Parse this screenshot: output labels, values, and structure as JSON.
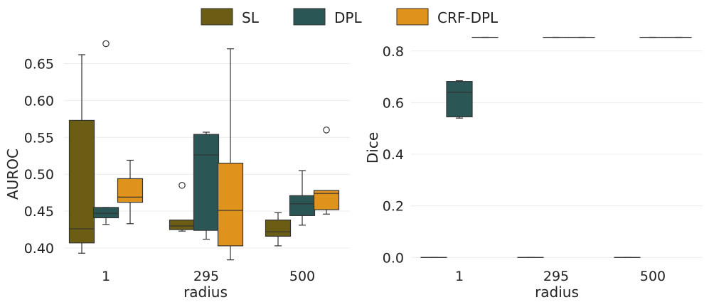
{
  "legend": [
    {
      "name": "SL",
      "color": "#6b5e14"
    },
    {
      "name": "DPL",
      "color": "#2b5656"
    },
    {
      "name": "CRF-DPL",
      "color": "#e0931c"
    }
  ],
  "chart_data": [
    {
      "type": "box",
      "xlabel": "radius",
      "ylabel": "AUROC",
      "categories": [
        "1",
        "295",
        "500"
      ],
      "ylim": [
        0.375,
        0.688
      ],
      "yticks": [
        0.4,
        0.45,
        0.5,
        0.55,
        0.6,
        0.65
      ],
      "ytick_labels": [
        "0.40",
        "0.45",
        "0.50",
        "0.55",
        "0.60",
        "0.65"
      ],
      "series": [
        {
          "name": "SL",
          "boxes": [
            {
              "category": "1",
              "whislo": 0.393,
              "q1": 0.407,
              "med": 0.426,
              "q3": 0.573,
              "whishi": 0.662,
              "fliers": []
            },
            {
              "category": "295",
              "whislo": 0.423,
              "q1": 0.425,
              "med": 0.43,
              "q3": 0.438,
              "whishi": 0.438,
              "fliers": [
                0.485
              ]
            },
            {
              "category": "500",
              "whislo": 0.403,
              "q1": 0.416,
              "med": 0.422,
              "q3": 0.438,
              "whishi": 0.448,
              "fliers": []
            }
          ]
        },
        {
          "name": "DPL",
          "boxes": [
            {
              "category": "1",
              "whislo": 0.432,
              "q1": 0.441,
              "med": 0.447,
              "q3": 0.455,
              "whishi": 0.455,
              "fliers": [
                0.677
              ]
            },
            {
              "category": "295",
              "whislo": 0.412,
              "q1": 0.424,
              "med": 0.526,
              "q3": 0.554,
              "whishi": 0.557,
              "fliers": []
            },
            {
              "category": "500",
              "whislo": 0.431,
              "q1": 0.444,
              "med": 0.46,
              "q3": 0.471,
              "whishi": 0.505,
              "fliers": []
            }
          ]
        },
        {
          "name": "CRF-DPL",
          "boxes": [
            {
              "category": "1",
              "whislo": 0.433,
              "q1": 0.462,
              "med": 0.469,
              "q3": 0.494,
              "whishi": 0.519,
              "fliers": []
            },
            {
              "category": "295",
              "whislo": 0.384,
              "q1": 0.403,
              "med": 0.451,
              "q3": 0.515,
              "whishi": 0.67,
              "fliers": []
            },
            {
              "category": "500",
              "whislo": 0.446,
              "q1": 0.452,
              "med": 0.474,
              "q3": 0.478,
              "whishi": 0.478,
              "fliers": [
                0.56
              ]
            }
          ]
        }
      ]
    },
    {
      "type": "box",
      "xlabel": "radius",
      "ylabel": "Dice",
      "categories": [
        "1",
        "295",
        "500"
      ],
      "ylim": [
        -0.035,
        0.86
      ],
      "yticks": [
        0.0,
        0.2,
        0.4,
        0.6,
        0.8
      ],
      "ytick_labels": [
        "0.0",
        "0.2",
        "0.4",
        "0.6",
        "0.8"
      ],
      "series": [
        {
          "name": "SL",
          "boxes": [
            {
              "category": "1",
              "whislo": 0.0,
              "q1": 0.0,
              "med": 0.0,
              "q3": 0.0,
              "whishi": 0.0,
              "fliers": []
            },
            {
              "category": "295",
              "whislo": 0.0,
              "q1": 0.0,
              "med": 0.0,
              "q3": 0.0,
              "whishi": 0.0,
              "fliers": []
            },
            {
              "category": "500",
              "whislo": 0.0,
              "q1": 0.0,
              "med": 0.0,
              "q3": 0.0,
              "whishi": 0.0,
              "fliers": []
            }
          ]
        },
        {
          "name": "DPL",
          "boxes": [
            {
              "category": "1",
              "whislo": 0.54,
              "q1": 0.545,
              "med": 0.64,
              "q3": 0.682,
              "whishi": 0.685,
              "fliers": []
            },
            {
              "category": "295",
              "whislo": 0.853,
              "q1": 0.853,
              "med": 0.853,
              "q3": 0.853,
              "whishi": 0.853,
              "fliers": []
            },
            {
              "category": "500",
              "whislo": 0.853,
              "q1": 0.853,
              "med": 0.853,
              "q3": 0.853,
              "whishi": 0.853,
              "fliers": []
            }
          ]
        },
        {
          "name": "CRF-DPL",
          "boxes": [
            {
              "category": "1",
              "whislo": 0.853,
              "q1": 0.853,
              "med": 0.853,
              "q3": 0.853,
              "whishi": 0.853,
              "fliers": []
            },
            {
              "category": "295",
              "whislo": 0.853,
              "q1": 0.853,
              "med": 0.853,
              "q3": 0.853,
              "whishi": 0.853,
              "fliers": []
            },
            {
              "category": "500",
              "whislo": 0.853,
              "q1": 0.853,
              "med": 0.853,
              "q3": 0.853,
              "whishi": 0.853,
              "fliers": []
            }
          ]
        }
      ]
    }
  ]
}
